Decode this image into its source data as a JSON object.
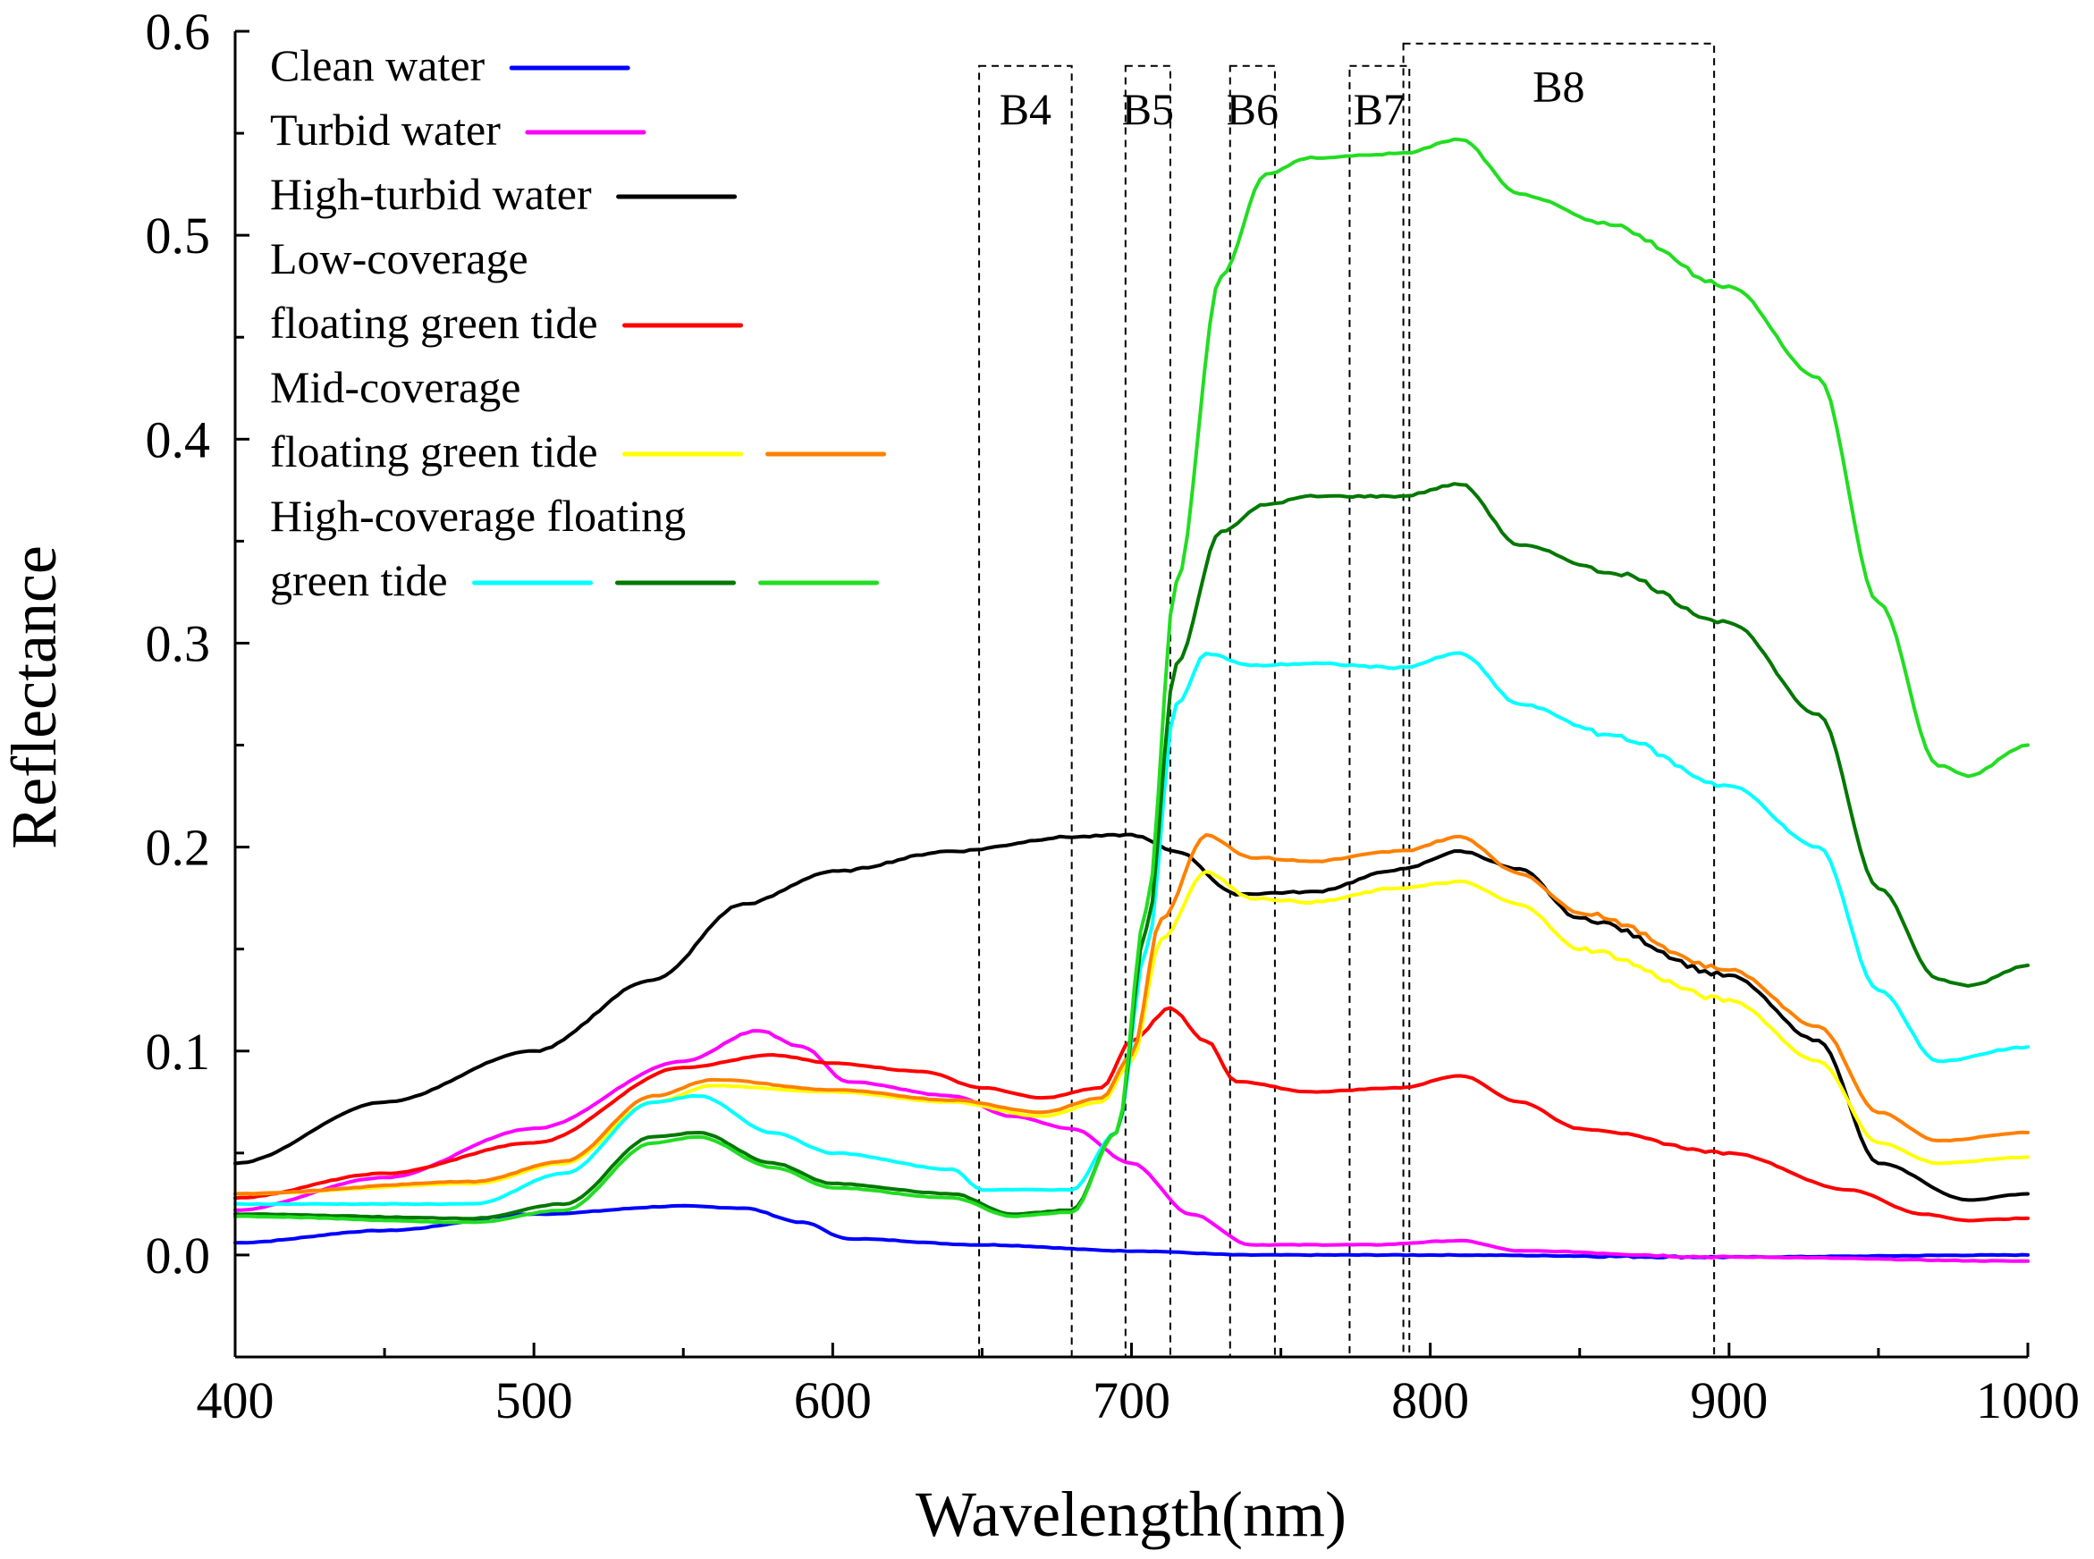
{
  "chart_data": {
    "type": "line",
    "title": "",
    "xlabel": "Wavelength(nm)",
    "ylabel": "Reflectance",
    "xlim": [
      400,
      1000
    ],
    "ylim": [
      -0.05,
      0.6
    ],
    "x_ticks": [
      400,
      500,
      600,
      700,
      800,
      900,
      1000
    ],
    "x_tick_labels": [
      "400",
      "500",
      "600",
      "700",
      "800",
      "900",
      "1000"
    ],
    "y_ticks": [
      0.0,
      0.1,
      0.2,
      0.3,
      0.4,
      0.5,
      0.6
    ],
    "y_tick_labels": [
      "0.0",
      "0.1",
      "0.2",
      "0.3",
      "0.4",
      "0.5",
      "0.6"
    ],
    "grid": false,
    "legend_position": "top-left",
    "legend": [
      {
        "lines": [
          "Clean water"
        ],
        "swatches": [
          "#0000ff"
        ]
      },
      {
        "lines": [
          "Turbid water"
        ],
        "swatches": [
          "#ff00ff"
        ]
      },
      {
        "lines": [
          "High-turbid water"
        ],
        "swatches": [
          "#000000"
        ]
      },
      {
        "lines": [
          "Low-coverage",
          "floating green tide"
        ],
        "swatches": [
          "#ff0000"
        ]
      },
      {
        "lines": [
          "Mid-coverage",
          "floating green tide"
        ],
        "swatches": [
          "#ffff00",
          "#ff8000"
        ]
      },
      {
        "lines": [
          "High-coverage floating",
          "green tide"
        ],
        "swatches": [
          "#00ffff",
          "#007800",
          "#22dd22"
        ]
      }
    ],
    "bands": [
      {
        "label": "B4",
        "x0": 649,
        "x1": 680,
        "ytop": 0.583
      },
      {
        "label": "B5",
        "x0": 698,
        "x1": 713,
        "ytop": 0.583
      },
      {
        "label": "B6",
        "x0": 733,
        "x1": 748,
        "ytop": 0.583
      },
      {
        "label": "B7",
        "x0": 773,
        "x1": 793,
        "ytop": 0.583
      },
      {
        "label": "B8",
        "x0": 791,
        "x1": 895,
        "ytop": 0.594
      }
    ],
    "series": [
      {
        "name": "Clean water",
        "color": "#0000ff",
        "x": [
          400,
          450,
          500,
          550,
          570,
          590,
          605,
          650,
          700,
          740,
          800,
          900,
          1000
        ],
        "y": [
          0.006,
          0.012,
          0.02,
          0.024,
          0.023,
          0.016,
          0.008,
          0.005,
          0.002,
          0.0,
          0.0,
          -0.001,
          0.0
        ]
      },
      {
        "name": "Turbid water",
        "color": "#ff00ff",
        "x": [
          400,
          450,
          500,
          550,
          575,
          590,
          605,
          640,
          660,
          680,
          700,
          720,
          740,
          780,
          810,
          830,
          900,
          1000
        ],
        "y": [
          0.022,
          0.038,
          0.062,
          0.095,
          0.11,
          0.102,
          0.085,
          0.078,
          0.068,
          0.062,
          0.045,
          0.02,
          0.005,
          0.005,
          0.007,
          0.002,
          -0.001,
          -0.003
        ]
      },
      {
        "name": "High-turbid water",
        "color": "#000000",
        "x": [
          400,
          450,
          500,
          540,
          570,
          600,
          640,
          680,
          700,
          715,
          735,
          760,
          790,
          810,
          830,
          850,
          900,
          930,
          950,
          980,
          1000
        ],
        "y": [
          0.045,
          0.075,
          0.1,
          0.135,
          0.172,
          0.188,
          0.198,
          0.205,
          0.206,
          0.198,
          0.177,
          0.178,
          0.189,
          0.198,
          0.189,
          0.165,
          0.137,
          0.105,
          0.045,
          0.027,
          0.03
        ]
      },
      {
        "name": "Low-coverage floating green tide",
        "color": "#ff0000",
        "x": [
          400,
          450,
          500,
          550,
          580,
          600,
          630,
          650,
          670,
          690,
          700,
          713,
          725,
          735,
          760,
          790,
          810,
          830,
          850,
          900,
          940,
          965,
          980,
          1000
        ],
        "y": [
          0.028,
          0.04,
          0.055,
          0.092,
          0.098,
          0.094,
          0.09,
          0.082,
          0.077,
          0.082,
          0.105,
          0.121,
          0.105,
          0.085,
          0.08,
          0.082,
          0.088,
          0.075,
          0.062,
          0.05,
          0.032,
          0.02,
          0.017,
          0.018
        ]
      },
      {
        "name": "Mid-coverage floating green tide (yellow)",
        "color": "#ffff00",
        "x": [
          400,
          480,
          510,
          540,
          560,
          600,
          640,
          670,
          690,
          700,
          710,
          725,
          740,
          760,
          790,
          810,
          830,
          850,
          900,
          930,
          950,
          970,
          1000
        ],
        "y": [
          0.03,
          0.035,
          0.045,
          0.075,
          0.083,
          0.08,
          0.075,
          0.068,
          0.075,
          0.095,
          0.155,
          0.188,
          0.175,
          0.173,
          0.18,
          0.183,
          0.172,
          0.15,
          0.125,
          0.095,
          0.055,
          0.045,
          0.048
        ]
      },
      {
        "name": "Mid-coverage floating green tide (orange)",
        "color": "#ff8000",
        "x": [
          400,
          480,
          510,
          540,
          560,
          600,
          640,
          670,
          690,
          700,
          710,
          725,
          740,
          760,
          790,
          810,
          830,
          850,
          900,
          930,
          950,
          970,
          1000
        ],
        "y": [
          0.03,
          0.036,
          0.046,
          0.078,
          0.086,
          0.081,
          0.076,
          0.07,
          0.077,
          0.098,
          0.165,
          0.206,
          0.195,
          0.193,
          0.198,
          0.205,
          0.187,
          0.168,
          0.14,
          0.112,
          0.07,
          0.056,
          0.06
        ]
      },
      {
        "name": "High-coverage floating green tide (cyan)",
        "color": "#00ffff",
        "x": [
          400,
          480,
          510,
          540,
          555,
          580,
          600,
          640,
          650,
          680,
          695,
          705,
          715,
          725,
          740,
          760,
          790,
          810,
          830,
          860,
          900,
          930,
          950,
          970,
          1000
        ],
        "y": [
          0.025,
          0.025,
          0.04,
          0.075,
          0.078,
          0.06,
          0.05,
          0.042,
          0.032,
          0.032,
          0.06,
          0.15,
          0.27,
          0.295,
          0.289,
          0.29,
          0.288,
          0.295,
          0.27,
          0.255,
          0.23,
          0.2,
          0.13,
          0.095,
          0.102
        ]
      },
      {
        "name": "High-coverage floating green tide (dark green)",
        "color": "#007800",
        "x": [
          400,
          480,
          510,
          540,
          555,
          580,
          600,
          640,
          660,
          680,
          695,
          705,
          715,
          730,
          745,
          760,
          790,
          810,
          830,
          860,
          900,
          930,
          950,
          970,
          980,
          1000
        ],
        "y": [
          0.02,
          0.018,
          0.025,
          0.058,
          0.06,
          0.045,
          0.035,
          0.03,
          0.02,
          0.022,
          0.06,
          0.16,
          0.29,
          0.355,
          0.368,
          0.372,
          0.372,
          0.378,
          0.348,
          0.335,
          0.31,
          0.265,
          0.18,
          0.135,
          0.132,
          0.142
        ]
      },
      {
        "name": "High-coverage floating green tide (light green)",
        "color": "#22dd22",
        "x": [
          400,
          480,
          510,
          540,
          555,
          580,
          600,
          640,
          660,
          680,
          695,
          705,
          715,
          730,
          745,
          760,
          790,
          810,
          830,
          860,
          900,
          930,
          950,
          970,
          980,
          1000
        ],
        "y": [
          0.019,
          0.016,
          0.022,
          0.055,
          0.058,
          0.043,
          0.033,
          0.028,
          0.019,
          0.021,
          0.06,
          0.17,
          0.33,
          0.48,
          0.53,
          0.538,
          0.54,
          0.547,
          0.52,
          0.505,
          0.475,
          0.43,
          0.32,
          0.24,
          0.235,
          0.25
        ]
      }
    ]
  }
}
